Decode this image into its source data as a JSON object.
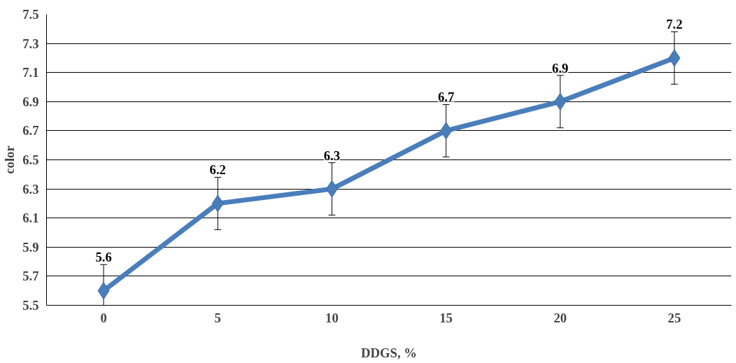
{
  "chart_data": {
    "type": "line",
    "xlabel": "DDGS, %",
    "ylabel": "color",
    "categories": [
      "0",
      "5",
      "10",
      "15",
      "20",
      "25"
    ],
    "series": [
      {
        "color": "#4a7ebb",
        "values": [
          5.6,
          6.2,
          6.3,
          6.7,
          6.9,
          7.2
        ],
        "errors": [
          0.18,
          0.18,
          0.18,
          0.18,
          0.18,
          0.18
        ]
      }
    ],
    "ylim": [
      5.5,
      7.5
    ],
    "yticks": [
      5.5,
      5.7,
      5.9,
      6.1,
      6.3,
      6.5,
      6.7,
      6.9,
      7.1,
      7.3,
      7.5
    ],
    "grid": "y",
    "marker": "diamond",
    "line_style": "solid",
    "data_labels": true
  }
}
